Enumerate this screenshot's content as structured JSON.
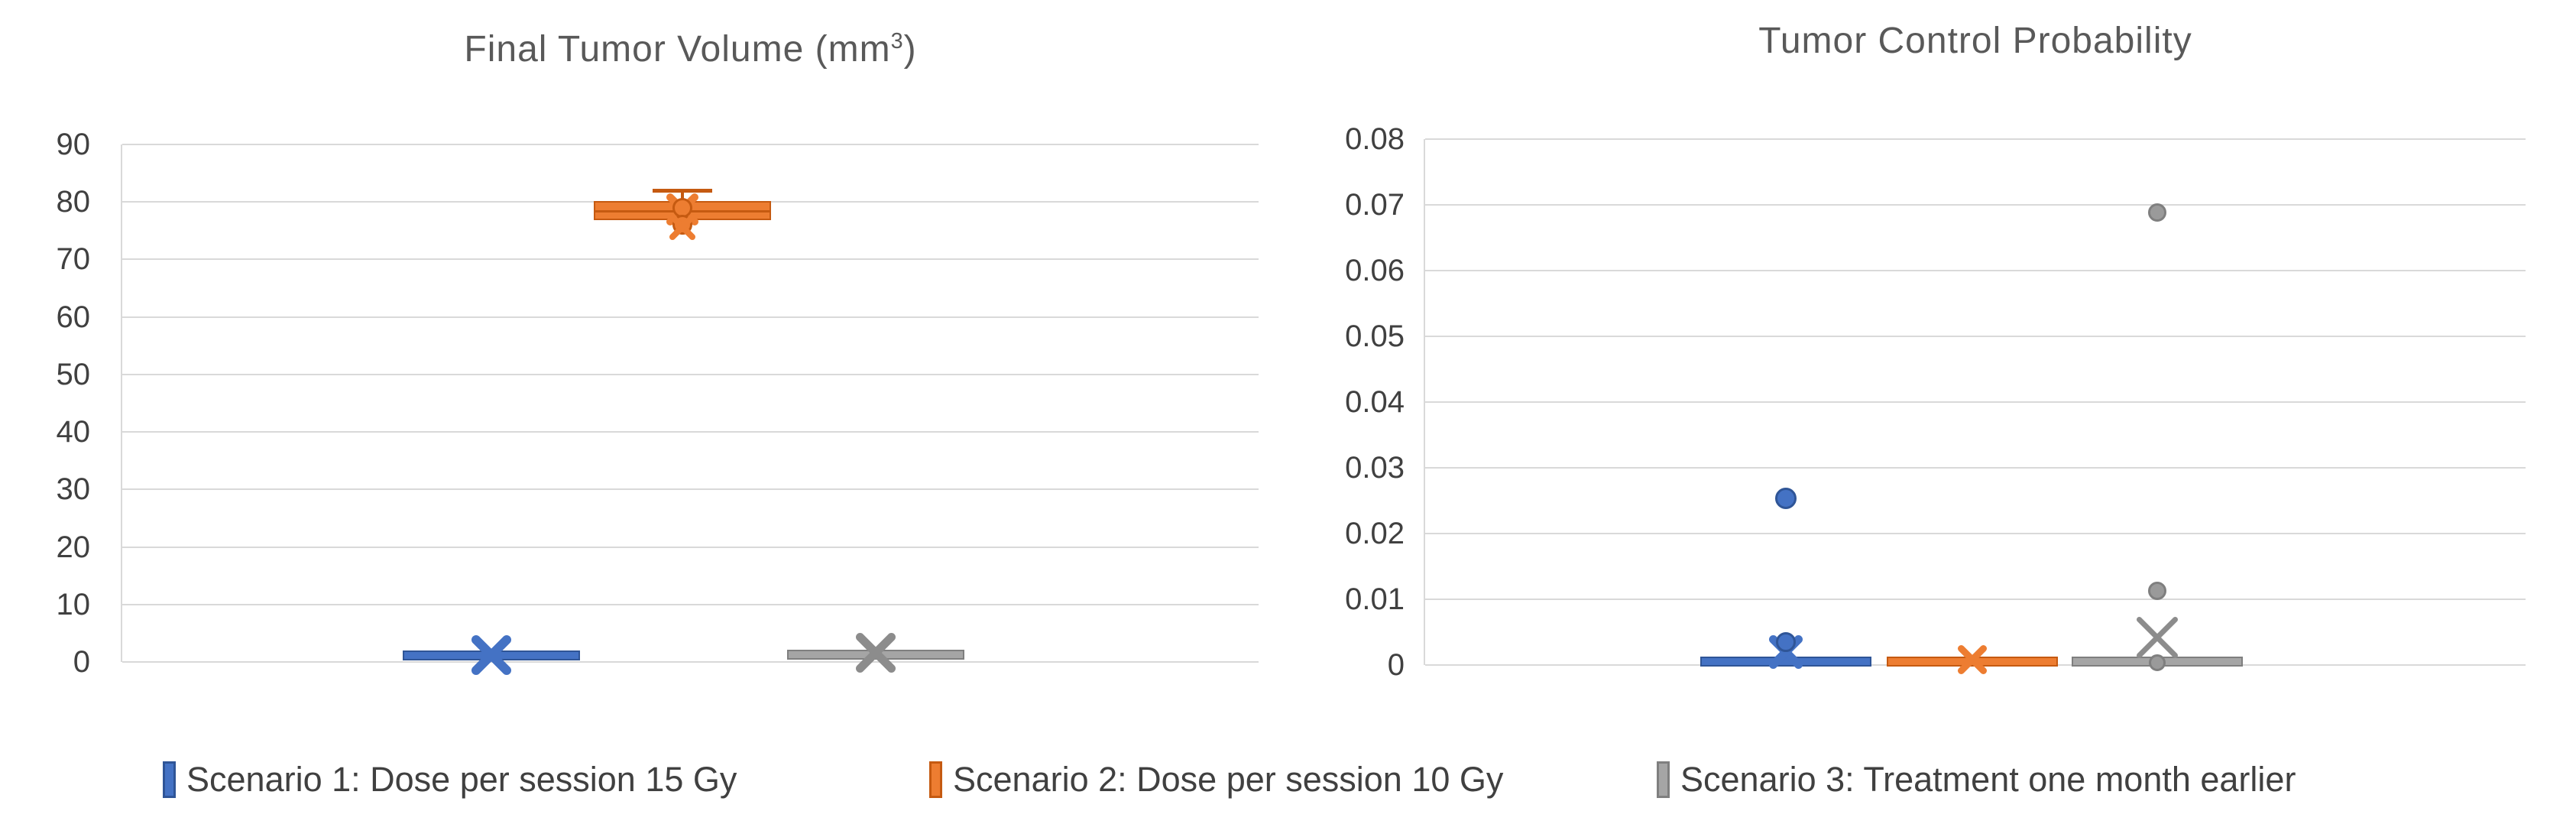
{
  "colors": {
    "background": "#ffffff",
    "gridline": "#d9d9d9",
    "axis_line": "#d9d9d9",
    "tick_text": "#404040",
    "title_text": "#595959",
    "legend_text": "#404040",
    "scenario1_blue": "#4472c4",
    "scenario2_orange": "#ed7d31",
    "scenario3_gray": "#a5a5a5"
  },
  "titles": {
    "chart1_pre": "Final Tumor Volume (mm",
    "chart1_sup": "3",
    "chart1_post": ")",
    "chart2": "Tumor Control Probability"
  },
  "legend": {
    "position": "bottom"
  },
  "chart_data": [
    {
      "type": "boxplot",
      "title": "Final Tumor Volume (mm³)",
      "xlabel": "",
      "ylabel": "",
      "ylim": [
        0,
        90
      ],
      "grid": true,
      "legend_position": "bottom",
      "yticks": [
        {
          "v": 0,
          "label": "0"
        },
        {
          "v": 10,
          "label": "10"
        },
        {
          "v": 20,
          "label": "20"
        },
        {
          "v": 30,
          "label": "30"
        },
        {
          "v": 40,
          "label": "40"
        },
        {
          "v": 50,
          "label": "50"
        },
        {
          "v": 60,
          "label": "60"
        },
        {
          "v": 70,
          "label": "70"
        },
        {
          "v": 80,
          "label": "80"
        },
        {
          "v": 90,
          "label": "90"
        }
      ],
      "series": [
        {
          "name": "Scenario 1: Dose per session 15 Gy",
          "color": "#4472c4",
          "border_color": "#2f5597",
          "box_low": 0.7,
          "box_high": 1.6,
          "median": 1.1,
          "mean": 1.2,
          "whisker_low": null,
          "whisker_high": null,
          "mean_marker": "x",
          "mean_size": 56,
          "mean_stroke": 12,
          "outliers": []
        },
        {
          "name": "Scenario 2: Dose per session 10 Gy",
          "color": "#ed7d31",
          "border_color": "#c55a11",
          "box_low": 76.8,
          "box_high": 80.2,
          "median": 78.5,
          "mean": 78.7,
          "whisker_low": null,
          "whisker_high": 82,
          "mean_marker": "x",
          "mean_size": 46,
          "mean_stroke": 10,
          "outliers": [
            {
              "v": 78.9,
              "type": "dot",
              "r": 13
            },
            {
              "v": 76.0,
              "type": "dot",
              "r": 13
            },
            {
              "v": 75.7,
              "type": "x",
              "size": 38,
              "stroke": 8
            }
          ]
        },
        {
          "name": "Scenario 3: Treatment one month earlier",
          "color": "#a5a5a5",
          "border_color": "#7f7f7f",
          "box_low": 0.8,
          "box_high": 1.8,
          "median": 1.3,
          "mean": 1.6,
          "whisker_low": null,
          "whisker_high": null,
          "mean_marker": "x",
          "mean_size": 56,
          "mean_stroke": 11,
          "outliers": []
        }
      ]
    },
    {
      "type": "boxplot",
      "title": "Tumor Control Probability",
      "xlabel": "",
      "ylabel": "",
      "ylim": [
        0,
        0.08
      ],
      "grid": true,
      "legend_position": "bottom",
      "yticks": [
        {
          "v": 0,
          "label": "0"
        },
        {
          "v": 0.01,
          "label": "0.01"
        },
        {
          "v": 0.02,
          "label": "0.02"
        },
        {
          "v": 0.03,
          "label": "0.03"
        },
        {
          "v": 0.04,
          "label": "0.04"
        },
        {
          "v": 0.05,
          "label": "0.05"
        },
        {
          "v": 0.06,
          "label": "0.06"
        },
        {
          "v": 0.07,
          "label": "0.07"
        },
        {
          "v": 0.08,
          "label": "0.08"
        }
      ],
      "series": [
        {
          "name": "Scenario 1: Dose per session 15 Gy",
          "color": "#4472c4",
          "border_color": "#2f5597",
          "box_low": 0.0001,
          "box_high": 0.0009,
          "median": 0.0004,
          "mean": 0.002,
          "whisker_low": null,
          "whisker_high": null,
          "mean_marker": "x",
          "mean_size": 48,
          "mean_stroke": 11,
          "outliers": [
            {
              "v": 0.0035,
              "type": "dot",
              "r": 13
            },
            {
              "v": 0.0253,
              "type": "dot",
              "r": 14
            }
          ]
        },
        {
          "name": "Scenario 2: Dose per session 10 Gy",
          "color": "#ed7d31",
          "border_color": "#c55a11",
          "box_low": 0.0001,
          "box_high": 0.0009,
          "median": 0.0004,
          "mean": 0.0008,
          "whisker_low": null,
          "whisker_high": null,
          "mean_marker": "x",
          "mean_size": 42,
          "mean_stroke": 9,
          "outliers": []
        },
        {
          "name": "Scenario 3: Treatment one month earlier",
          "color": "#a5a5a5",
          "border_color": "#7f7f7f",
          "box_low": 0.0001,
          "box_high": 0.0009,
          "median": 0.0004,
          "mean": 0.0042,
          "whisker_low": null,
          "whisker_high": null,
          "mean_marker": "x",
          "mean_size": 58,
          "mean_stroke": 7,
          "outliers": [
            {
              "v": 0.0004,
              "type": "dot",
              "r": 11
            },
            {
              "v": 0.0113,
              "type": "dot",
              "r": 12
            },
            {
              "v": 0.0688,
              "type": "dot",
              "r": 12
            }
          ]
        }
      ]
    }
  ]
}
